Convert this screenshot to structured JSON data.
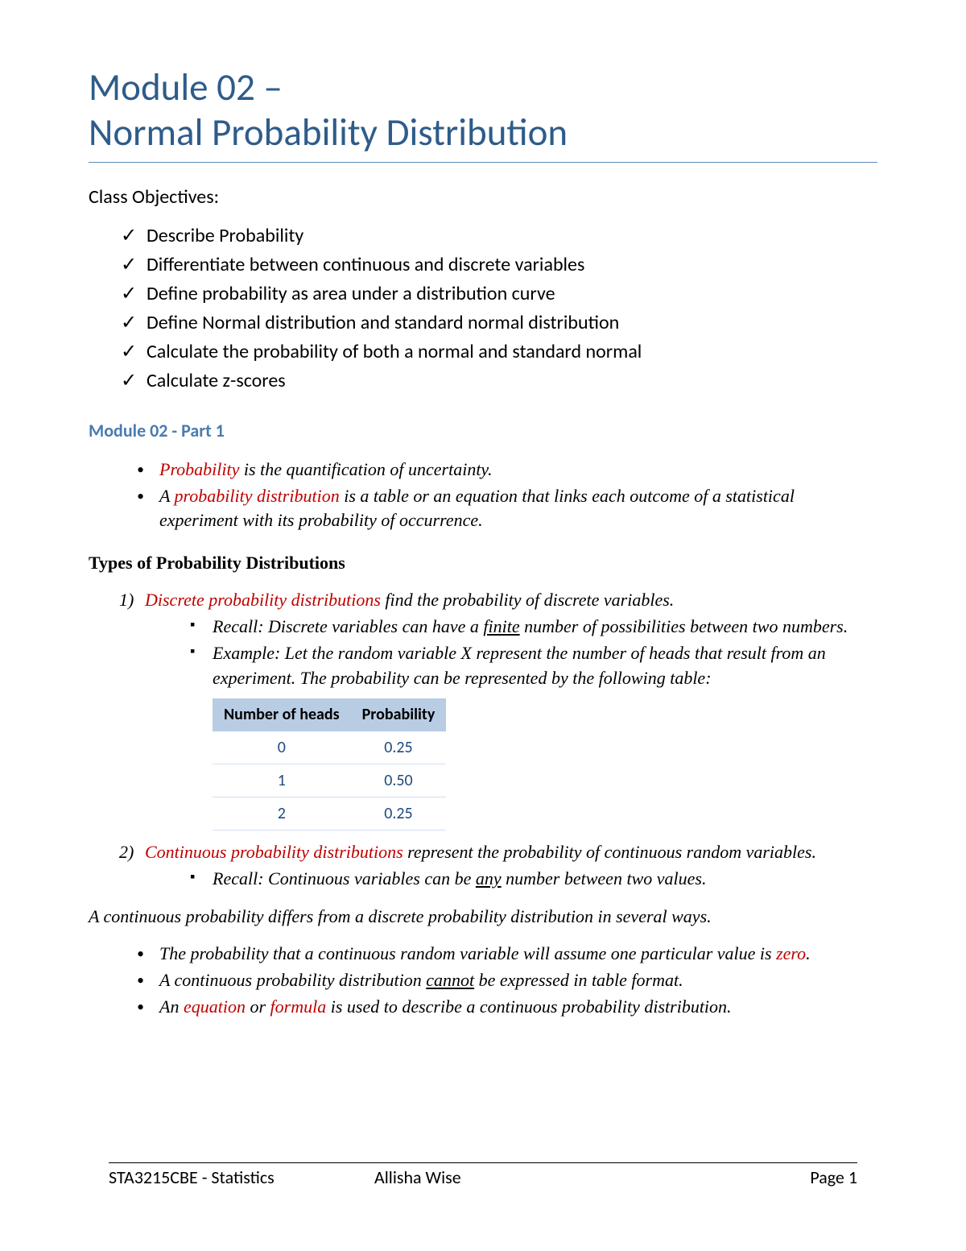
{
  "title": {
    "line1": "Module 02 –",
    "line2": "Normal Probability Distribution"
  },
  "colors": {
    "title": "#2e5c8a",
    "title_underline": "#5b8db8",
    "subheading": "#4a7bb0",
    "red_term": "#c00000",
    "body_text": "#000000",
    "table_header_bg": "#b8cce4",
    "table_cell_text": "#1f497d",
    "table_row_border": "#d4e1f0",
    "background": "#ffffff"
  },
  "typography": {
    "title_fontsize": 47,
    "heading_fontsize": 24,
    "body_fontsize": 22,
    "serif_family": "Georgia",
    "sans_family": "Calibri"
  },
  "objectives": {
    "heading": "Class Objectives:",
    "items": [
      "Describe Probability",
      "Differentiate between continuous and discrete variables",
      "Define probability as area under a distribution curve",
      "Define Normal distribution and standard normal distribution",
      "Calculate the probability of both a normal and standard normal",
      "Calculate z-scores"
    ]
  },
  "module_part": "Module 02 - Part 1",
  "definitions": {
    "prob_term": "Probability",
    "prob_text": " is the quantification of uncertainty.",
    "a_prefix": "A ",
    "dist_term": "probability distribution",
    "dist_text": " is a table or an equation that links each outcome of a statistical experiment with its probability of occurrence."
  },
  "types_heading": "Types of Probability Distributions",
  "discrete": {
    "marker": "1)",
    "term": "Discrete probability distributions",
    "text": " find the probability of discrete variables.",
    "recall_prefix": "Recall: Discrete variables can have a ",
    "recall_underlined": "finite",
    "recall_suffix": " number of possibilities between two numbers.",
    "example": "Example: Let the random variable X represent the number of heads that result from an experiment.  The probability can be represented by the following table:"
  },
  "table": {
    "type": "table",
    "columns": [
      "Number of heads",
      "Probability"
    ],
    "rows": [
      [
        "0",
        "0.25"
      ],
      [
        "1",
        "0.50"
      ],
      [
        "2",
        "0.25"
      ]
    ],
    "header_bg": "#b8cce4",
    "header_fontsize": 20,
    "cell_fontsize": 20,
    "cell_text_color": "#1f497d"
  },
  "continuous": {
    "marker": "2)",
    "term": "Continuous probability distributions",
    "text": " represent the probability of continuous random variables.",
    "recall_prefix": "Recall: Continuous variables can be ",
    "recall_underlined": "any",
    "recall_suffix": " number between two values."
  },
  "diff_intro": "A continuous probability differs from a discrete probability distribution in several ways.",
  "differences": {
    "item1_prefix": "The probability that a continuous random variable will assume one particular value is ",
    "item1_term": "zero",
    "item1_suffix": ".",
    "item2_prefix": "A continuous probability distribution ",
    "item2_underlined": "cannot",
    "item2_suffix": " be expressed in table format.",
    "item3_prefix": "An ",
    "item3_term1": "equation",
    "item3_mid": " or ",
    "item3_term2": "formula",
    "item3_suffix": " is used to describe a continuous probability distribution."
  },
  "footer": {
    "course": "STA3215CBE - Statistics",
    "name": "Allisha Wise",
    "page": "Page 1"
  }
}
